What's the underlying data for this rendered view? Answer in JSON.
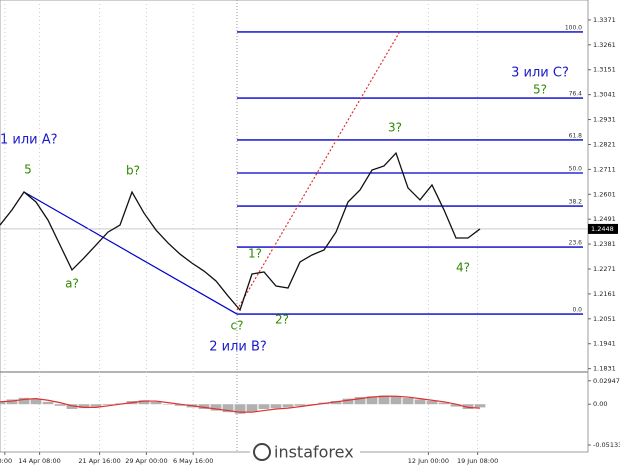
{
  "chart_data": {
    "type": "line",
    "price": {
      "values": [
        1.2465,
        1.2532,
        1.2611,
        1.2567,
        1.2487,
        1.2377,
        1.2267,
        1.232,
        1.2377,
        1.2434,
        1.2465,
        1.2611,
        1.2518,
        1.2443,
        1.2386,
        1.2337,
        1.2297,
        1.2262,
        1.2218,
        1.2152,
        1.209,
        1.2249,
        1.2258,
        1.2196,
        1.2187,
        1.2302,
        1.2333,
        1.2355,
        1.2434,
        1.2567,
        1.262,
        1.2708,
        1.2726,
        1.2783,
        1.2629,
        1.2576,
        1.2642,
        1.2532,
        1.2408,
        1.2408,
        1.2448
      ],
      "color": "#111111"
    },
    "xlim": [
      0,
      49
    ],
    "ylim": [
      1.1825,
      1.3459
    ],
    "yticks": [
      1.3371,
      1.3261,
      1.3151,
      1.3041,
      1.2931,
      1.2821,
      1.2711,
      1.2601,
      1.2491,
      1.2381,
      1.2271,
      1.2161,
      1.2051,
      1.1941,
      1.1831
    ],
    "xticks": [
      {
        "value": 0.4,
        "label": "0:00"
      },
      {
        "value": 3.3,
        "label": "14 Apr 08:00"
      },
      {
        "value": 8.3,
        "label": "21 Apr 16:00"
      },
      {
        "value": 12.2,
        "label": "29 Apr 00:00"
      },
      {
        "value": 16.1,
        "label": "6 May 16:00"
      },
      {
        "value": 35.7,
        "label": "12 Jun 00:00"
      },
      {
        "value": 39.8,
        "label": "19 Jun 08:00"
      }
    ],
    "current_price": 1.2448,
    "fib": {
      "x_start": 19.75,
      "levels": [
        1.3318,
        1.3026,
        1.2841,
        1.2695,
        1.2549,
        1.2368,
        1.2072
      ],
      "labels": [
        "100.0",
        "76.4",
        "61.8",
        "50.0",
        "38.2",
        "23.6",
        "0.0"
      ],
      "color": "#0000cc"
    },
    "lines": [
      {
        "x": [
          2,
          19.75
        ],
        "values": [
          1.2611,
          1.2072
        ],
        "color": "#0000cc"
      },
      {
        "x": [
          19.75,
          33.3
        ],
        "values": [
          1.209,
          1.3318
        ],
        "color": "#e03030"
      }
    ],
    "annotations": [
      "1 или A?",
      "5",
      "a?",
      "b?",
      "c?",
      "2 или B?",
      "1?",
      "2?",
      "3?",
      "4?",
      "3 или C?",
      "5?"
    ],
    "oscillator": {
      "ylim": [
        -0.0589,
        0.0393
      ],
      "yticks": [
        0.02947,
        {
          "value": 0,
          "label": "0.00"
        },
        -0.05133
      ],
      "histogram": [
        0.004,
        0.006,
        0.008,
        0.007,
        0.003,
        -0.002,
        -0.006,
        -0.005,
        -0.003,
        -0.001,
        0.001,
        0.004,
        0.005,
        0.003,
        0.0,
        -0.002,
        -0.004,
        -0.006,
        -0.008,
        -0.01,
        -0.012,
        -0.009,
        -0.006,
        -0.005,
        -0.004,
        -0.002,
        0.0,
        0.002,
        0.004,
        0.007,
        0.009,
        0.01,
        0.011,
        0.01,
        0.008,
        0.006,
        0.004,
        0.002,
        -0.003,
        -0.006,
        -0.004
      ],
      "signal": [
        0.003,
        0.004,
        0.006,
        0.007,
        0.005,
        0.002,
        -0.002,
        -0.004,
        -0.004,
        -0.002,
        0.0,
        0.002,
        0.004,
        0.004,
        0.002,
        0.0,
        -0.002,
        -0.004,
        -0.006,
        -0.008,
        -0.01,
        -0.01,
        -0.008,
        -0.006,
        -0.005,
        -0.003,
        -0.001,
        0.001,
        0.003,
        0.005,
        0.007,
        0.009,
        0.01,
        0.01,
        0.009,
        0.007,
        0.005,
        0.003,
        0.0,
        -0.004,
        -0.005
      ],
      "histogram_color": "#b0b0b0",
      "signal_color": "#e03030"
    },
    "watermark": "instaforex"
  }
}
